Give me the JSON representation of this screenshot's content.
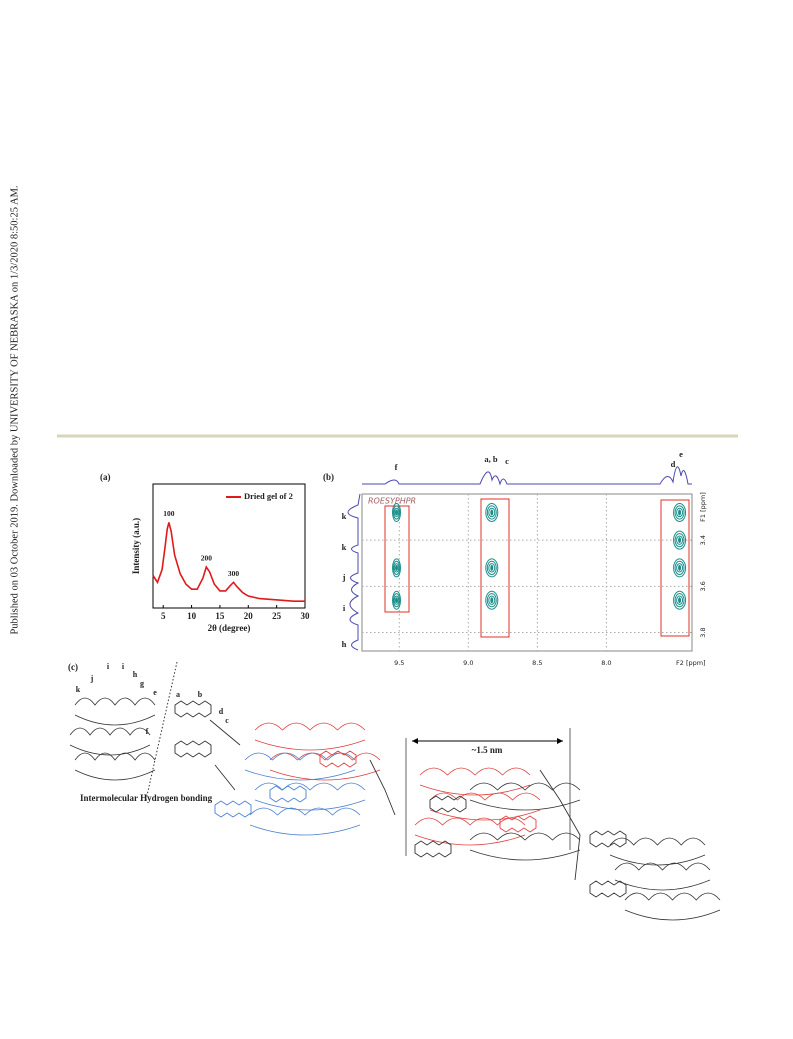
{
  "sidebar": "Published on 03 October 2019. Downloaded by UNIVERSITY OF NEBRASKA on 1/3/2020 8:50:25 AM.",
  "figure": {
    "panel_a": {
      "type": "line",
      "label": "(a)",
      "x_label": "2θ (degree)",
      "y_label": "Intensity (a.u.)",
      "legend": "Dried gel of 2",
      "color": "#e0191b",
      "x": [
        3.2,
        4,
        4.8,
        5.3,
        5.7,
        6.0,
        6.4,
        7,
        8,
        9,
        10,
        11,
        12,
        12.6,
        13.2,
        14,
        15,
        16,
        16.8,
        17.4,
        18,
        19,
        20,
        22,
        24,
        26,
        28,
        30
      ],
      "values": [
        38,
        30,
        45,
        70,
        92,
        100,
        90,
        62,
        40,
        28,
        22,
        22,
        35,
        48,
        42,
        28,
        20,
        20,
        26,
        30,
        25,
        18,
        14,
        11,
        10,
        9,
        8,
        8
      ],
      "xlim": [
        3.2,
        30
      ],
      "ylim": [
        0,
        145
      ],
      "xticks": [
        5,
        10,
        15,
        20,
        25,
        30
      ],
      "annotations": [
        {
          "text": "100",
          "x": 6.0
        },
        {
          "text": "200",
          "x": 12.6
        },
        {
          "text": "300",
          "x": 17.4
        }
      ]
    },
    "panel_b": {
      "label": "(b)",
      "experiment": "ROESYPHPR",
      "x_label": "F2 [ppm]",
      "y_label": "F1 [ppm]",
      "xlim": [
        9.77,
        7.38
      ],
      "ylim": [
        3.2,
        3.88
      ],
      "xticks": [
        9.5,
        {
          "value": 9,
          "label": "9.0"
        },
        8.5,
        {
          "value": 8,
          "label": "8.0"
        }
      ],
      "yticks": [
        3.4,
        3.6,
        3.8
      ],
      "top_labels": [
        "f",
        "a, b",
        "c",
        "d",
        "e"
      ],
      "side_labels": [
        "k",
        "k",
        "j",
        "i",
        "h"
      ],
      "cross_peaks": [
        {
          "f2": 9.52,
          "f1": 3.28
        },
        {
          "f2": 9.52,
          "f1": 3.52
        },
        {
          "f2": 9.52,
          "f1": 3.66
        },
        {
          "f2": 8.83,
          "f1": 3.28
        },
        {
          "f2": 8.83,
          "f1": 3.52
        },
        {
          "f2": 8.83,
          "f1": 3.66
        },
        {
          "f2": 7.47,
          "f1": 3.28
        },
        {
          "f2": 7.47,
          "f1": 3.4
        },
        {
          "f2": 7.47,
          "f1": 3.52
        },
        {
          "f2": 7.47,
          "f1": 3.66
        }
      ],
      "peak_color": "#1a8f8a"
    },
    "panel_c": {
      "label": "(c)",
      "caption": "Intermolecular Hydrogen bonding",
      "distance": "~1.5 nm",
      "atom_labels": [
        "k",
        "j",
        "i",
        "i",
        "h",
        "g",
        "e",
        "a",
        "b",
        "d",
        "c",
        "f"
      ]
    }
  }
}
